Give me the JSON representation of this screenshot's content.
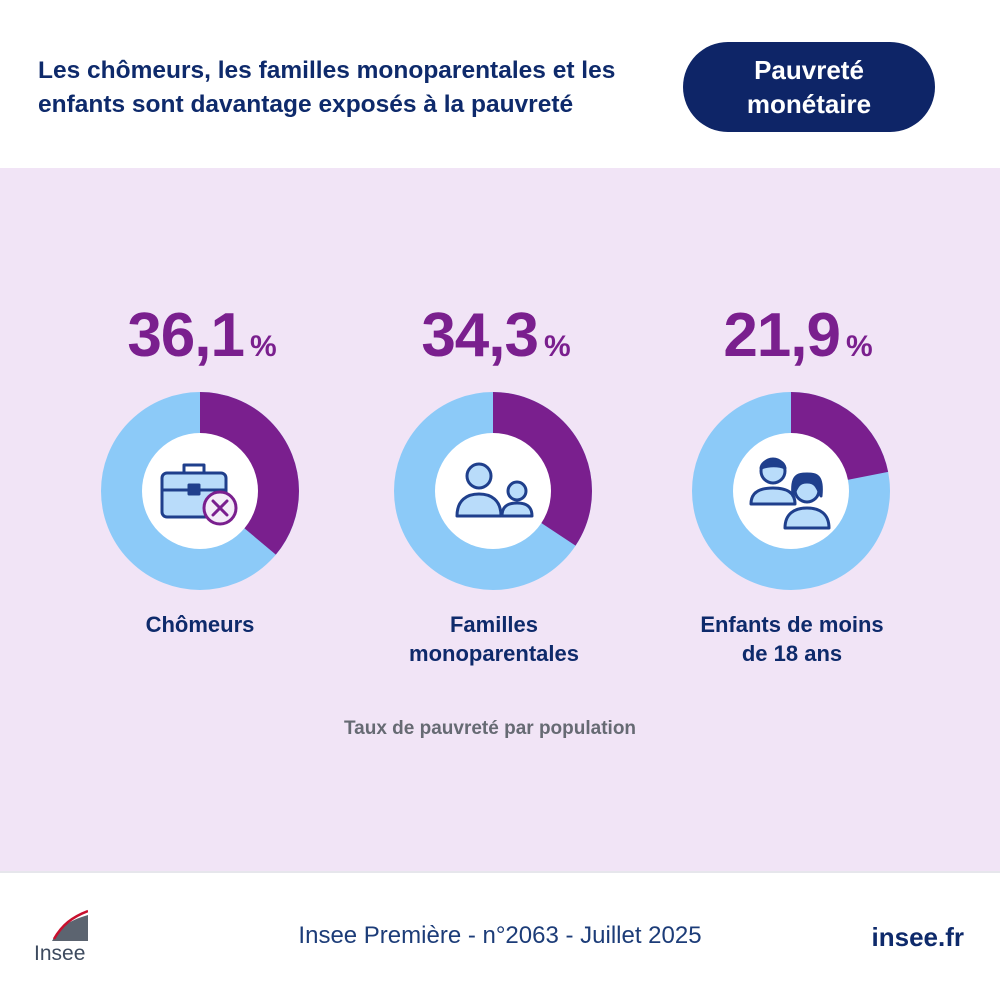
{
  "header": {
    "title_line1": "Les chômeurs, les familles monoparentales et les",
    "title_line2": "enfants sont davantage exposés à la pauvreté",
    "badge_line1": "Pauvreté",
    "badge_line2": "monétaire"
  },
  "chart_data": {
    "type": "donut",
    "title": "Les chômeurs, les familles monoparentales et les enfants sont davantage exposés à la pauvreté",
    "caption": "Taux de pauvreté par population",
    "unit": "%",
    "categories": [
      "Chômeurs",
      "Familles monoparentales",
      "Enfants de moins de 18 ans"
    ],
    "values": [
      36.1,
      34.3,
      21.9
    ],
    "items": [
      {
        "value": 36.1,
        "value_label": "36,1",
        "unit": "%",
        "label_lines": [
          "Chômeurs"
        ],
        "icon": "briefcase-cross-icon"
      },
      {
        "value": 34.3,
        "value_label": "34,3",
        "unit": "%",
        "label_lines": [
          "Familles",
          "monoparentales"
        ],
        "icon": "parent-child-icon"
      },
      {
        "value": 21.9,
        "value_label": "21,9",
        "unit": "%",
        "label_lines": [
          "Enfants de moins",
          "de 18 ans"
        ],
        "icon": "children-icon"
      }
    ],
    "colors": {
      "share": "#7a1f8e",
      "remainder": "#8ccaf8",
      "value_text": "#7a1f8e"
    }
  },
  "footer": {
    "logo_text": "Insee",
    "source": "Insee Première - n°2063 - Juillet 2025",
    "site": "insee.fr"
  }
}
